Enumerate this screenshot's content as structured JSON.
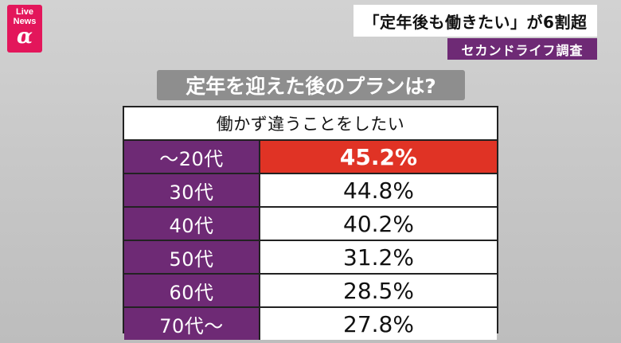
{
  "logo": {
    "line1": "Live",
    "line2": "News",
    "alpha": "α",
    "color": "#e3165b"
  },
  "headline": "「定年後も働きたい」が6割超",
  "subtag": "セカンドライフ調査",
  "question": "定年を迎えた後のプランは?",
  "chart_data": {
    "type": "table",
    "header": "働かず違うことをしたい",
    "categories": [
      "〜20代",
      "30代",
      "40代",
      "50代",
      "60代",
      "70代〜"
    ],
    "values": [
      45.2,
      44.8,
      40.2,
      31.2,
      28.5,
      27.8
    ],
    "display_values": [
      "45.2%",
      "44.8%",
      "40.2%",
      "31.2%",
      "28.5%",
      "27.8%"
    ],
    "unit": "%",
    "highlight_index": 0,
    "colors": {
      "label_bg": "#6e2a75",
      "highlight_bg": "#e03325"
    }
  }
}
